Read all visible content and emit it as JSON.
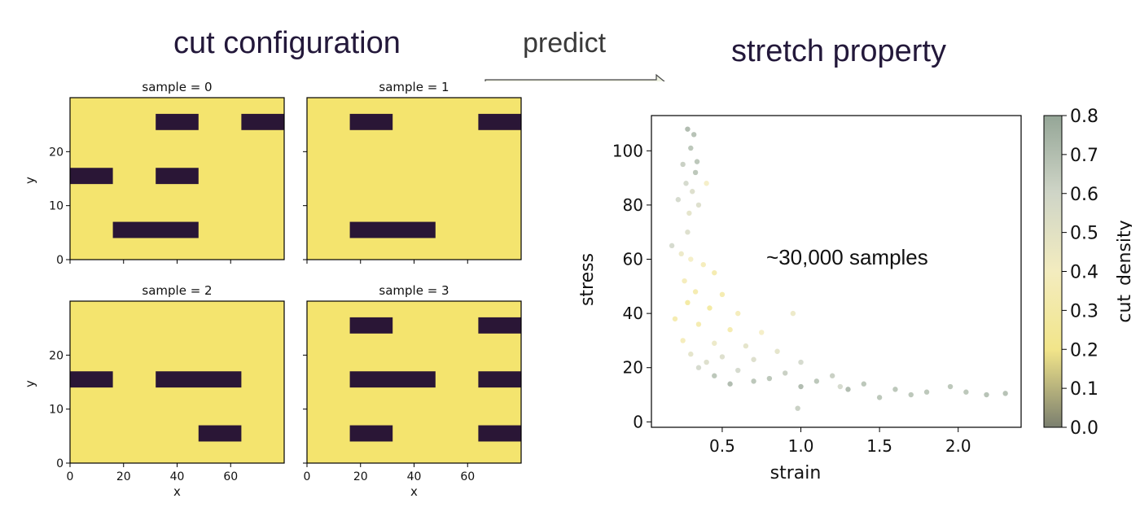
{
  "header": {
    "left_title": "cut configuration",
    "arrow_label": "predict",
    "right_title": "stretch property"
  },
  "chart_data": [
    {
      "type": "heatmap",
      "title": "sample = 0",
      "xlabel": "x",
      "ylabel": "y",
      "xlim": [
        0,
        80
      ],
      "ylim": [
        0,
        30
      ],
      "xticks": [
        "0",
        "20",
        "40",
        "60"
      ],
      "yticks": [
        "0",
        "10",
        "20"
      ],
      "colors": {
        "background": "#f4e46e",
        "cut": "#2a1636"
      },
      "cuts": [
        [
          32,
          48,
          24,
          27
        ],
        [
          64,
          80,
          24,
          27
        ],
        [
          0,
          16,
          14,
          17
        ],
        [
          32,
          48,
          14,
          17
        ],
        [
          16,
          48,
          4,
          7
        ]
      ]
    },
    {
      "type": "heatmap",
      "title": "sample = 1",
      "xlabel": "x",
      "ylabel": "y",
      "xlim": [
        0,
        80
      ],
      "ylim": [
        0,
        30
      ],
      "xticks": [
        "0",
        "20",
        "40",
        "60"
      ],
      "yticks": [
        "0",
        "10",
        "20"
      ],
      "colors": {
        "background": "#f4e46e",
        "cut": "#2a1636"
      },
      "cuts": [
        [
          16,
          32,
          24,
          27
        ],
        [
          64,
          80,
          24,
          27
        ],
        [
          16,
          48,
          4,
          7
        ]
      ]
    },
    {
      "type": "heatmap",
      "title": "sample = 2",
      "xlabel": "x",
      "ylabel": "y",
      "xlim": [
        0,
        80
      ],
      "ylim": [
        0,
        30
      ],
      "xticks": [
        "0",
        "20",
        "40",
        "60"
      ],
      "yticks": [
        "0",
        "10",
        "20"
      ],
      "colors": {
        "background": "#f4e46e",
        "cut": "#2a1636"
      },
      "cuts": [
        [
          0,
          16,
          14,
          17
        ],
        [
          32,
          64,
          14,
          17
        ],
        [
          48,
          64,
          4,
          7
        ]
      ]
    },
    {
      "type": "heatmap",
      "title": "sample = 3",
      "xlabel": "x",
      "ylabel": "y",
      "xlim": [
        0,
        80
      ],
      "ylim": [
        0,
        30
      ],
      "xticks": [
        "0",
        "20",
        "40",
        "60"
      ],
      "yticks": [
        "0",
        "10",
        "20"
      ],
      "colors": {
        "background": "#f4e46e",
        "cut": "#2a1636"
      },
      "cuts": [
        [
          16,
          32,
          24,
          27
        ],
        [
          64,
          80,
          24,
          27
        ],
        [
          16,
          48,
          14,
          17
        ],
        [
          64,
          80,
          14,
          17
        ],
        [
          16,
          32,
          4,
          7
        ],
        [
          64,
          80,
          4,
          7
        ]
      ]
    },
    {
      "type": "scatter",
      "title": "",
      "xlabel": "strain",
      "ylabel": "stress",
      "xlim": [
        0.05,
        2.4
      ],
      "ylim": [
        -2,
        113
      ],
      "xticks": [
        "0.5",
        "1.0",
        "1.5",
        "2.0"
      ],
      "yticks": [
        "0",
        "20",
        "40",
        "60",
        "80",
        "100"
      ],
      "annotation": "~30,000 samples",
      "colorbar": {
        "label": "cut_density",
        "range": [
          0,
          0.8
        ],
        "ticks": [
          "0.0",
          "0.1",
          "0.2",
          "0.3",
          "0.4",
          "0.5",
          "0.6",
          "0.7",
          "0.8"
        ],
        "colors": [
          "#7b7f6f",
          "#f2e58a",
          "#f3ecbf",
          "#cfd5c7",
          "#95a697"
        ]
      },
      "points": [
        [
          0.28,
          108,
          0.75
        ],
        [
          0.32,
          106,
          0.72
        ],
        [
          0.3,
          101,
          0.7
        ],
        [
          0.25,
          95,
          0.65
        ],
        [
          0.33,
          92,
          0.7
        ],
        [
          0.27,
          88,
          0.6
        ],
        [
          0.31,
          85,
          0.55
        ],
        [
          0.22,
          82,
          0.6
        ],
        [
          0.35,
          80,
          0.55
        ],
        [
          0.29,
          77,
          0.5
        ],
        [
          0.4,
          88,
          0.4
        ],
        [
          0.18,
          65,
          0.6
        ],
        [
          0.24,
          62,
          0.45
        ],
        [
          0.3,
          60,
          0.4
        ],
        [
          0.38,
          58,
          0.35
        ],
        [
          0.45,
          55,
          0.3
        ],
        [
          0.26,
          52,
          0.35
        ],
        [
          0.33,
          48,
          0.3
        ],
        [
          0.5,
          47,
          0.3
        ],
        [
          0.28,
          44,
          0.25
        ],
        [
          0.42,
          42,
          0.25
        ],
        [
          0.6,
          40,
          0.35
        ],
        [
          0.2,
          38,
          0.3
        ],
        [
          0.35,
          36,
          0.3
        ],
        [
          0.55,
          34,
          0.3
        ],
        [
          0.75,
          33,
          0.4
        ],
        [
          0.95,
          40,
          0.45
        ],
        [
          0.25,
          30,
          0.35
        ],
        [
          0.45,
          29,
          0.45
        ],
        [
          0.65,
          28,
          0.5
        ],
        [
          0.85,
          26,
          0.5
        ],
        [
          0.3,
          25,
          0.5
        ],
        [
          0.5,
          24,
          0.55
        ],
        [
          0.7,
          23,
          0.55
        ],
        [
          1.0,
          22,
          0.6
        ],
        [
          0.35,
          20,
          0.6
        ],
        [
          0.6,
          19,
          0.6
        ],
        [
          0.9,
          18,
          0.65
        ],
        [
          1.2,
          17,
          0.65
        ],
        [
          0.45,
          17,
          0.7
        ],
        [
          0.8,
          16,
          0.7
        ],
        [
          1.1,
          15,
          0.7
        ],
        [
          1.4,
          14,
          0.7
        ],
        [
          0.55,
          14,
          0.75
        ],
        [
          1.0,
          13,
          0.75
        ],
        [
          1.3,
          12,
          0.75
        ],
        [
          1.6,
          12,
          0.7
        ],
        [
          1.8,
          11,
          0.7
        ],
        [
          1.95,
          13,
          0.7
        ],
        [
          2.05,
          11,
          0.7
        ],
        [
          2.18,
          10,
          0.72
        ],
        [
          2.3,
          10.5,
          0.72
        ],
        [
          1.5,
          9,
          0.7
        ],
        [
          1.7,
          10,
          0.7
        ],
        [
          0.98,
          5,
          0.65
        ],
        [
          1.25,
          13,
          0.6
        ],
        [
          0.7,
          15,
          0.7
        ],
        [
          0.4,
          22,
          0.55
        ],
        [
          0.28,
          70,
          0.55
        ],
        [
          0.34,
          96,
          0.7
        ]
      ]
    }
  ]
}
